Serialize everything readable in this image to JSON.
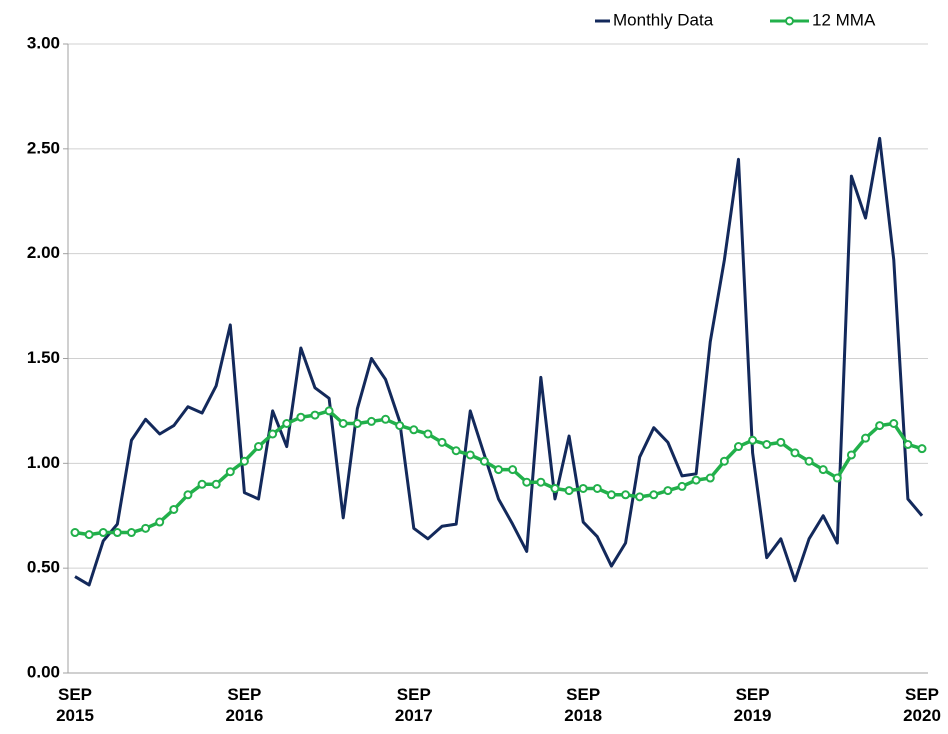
{
  "chart_data": {
    "type": "line",
    "categories": [
      "SEP 2015",
      null,
      null,
      null,
      null,
      null,
      null,
      null,
      null,
      null,
      null,
      null,
      "SEP 2016",
      null,
      null,
      null,
      null,
      null,
      null,
      null,
      null,
      null,
      null,
      null,
      "SEP 2017",
      null,
      null,
      null,
      null,
      null,
      null,
      null,
      null,
      null,
      null,
      null,
      "SEP 2018",
      null,
      null,
      null,
      null,
      null,
      null,
      null,
      null,
      null,
      null,
      null,
      "SEP 2019",
      null,
      null,
      null,
      null,
      null,
      null,
      null,
      null,
      null,
      null,
      null,
      "SEP 2020"
    ],
    "series": [
      {
        "name": "Monthly Data",
        "color": "#13295b",
        "values": [
          0.46,
          0.42,
          0.63,
          0.71,
          1.11,
          1.21,
          1.14,
          1.18,
          1.27,
          1.24,
          1.37,
          1.66,
          0.86,
          0.83,
          1.25,
          1.08,
          1.55,
          1.36,
          1.31,
          0.74,
          1.26,
          1.5,
          1.4,
          1.2,
          0.69,
          0.64,
          0.7,
          0.71,
          1.25,
          1.04,
          0.83,
          0.71,
          0.58,
          1.41,
          0.83,
          1.13,
          0.72,
          0.65,
          0.51,
          0.62,
          1.03,
          1.17,
          1.1,
          0.94,
          0.95,
          1.58,
          1.97,
          2.45,
          1.05,
          0.55,
          0.64,
          0.44,
          0.64,
          0.75,
          0.62,
          2.37,
          2.17,
          2.55,
          1.97,
          0.83,
          0.75
        ]
      },
      {
        "name": "12 MMA",
        "color": "#22b04b",
        "marker": "circle",
        "values": [
          0.67,
          0.66,
          0.67,
          0.67,
          0.67,
          0.69,
          0.72,
          0.78,
          0.85,
          0.9,
          0.9,
          0.96,
          1.01,
          1.08,
          1.14,
          1.19,
          1.22,
          1.23,
          1.25,
          1.19,
          1.19,
          1.2,
          1.21,
          1.18,
          1.16,
          1.14,
          1.1,
          1.06,
          1.04,
          1.01,
          0.97,
          0.97,
          0.91,
          0.91,
          0.88,
          0.87,
          0.88,
          0.88,
          0.85,
          0.85,
          0.84,
          0.85,
          0.87,
          0.89,
          0.92,
          0.93,
          1.01,
          1.08,
          1.11,
          1.09,
          1.1,
          1.05,
          1.01,
          0.97,
          0.93,
          1.04,
          1.12,
          1.18,
          1.19,
          1.09,
          1.07
        ]
      }
    ],
    "ylim": [
      0,
      3
    ],
    "yticks": [
      {
        "value": 0,
        "label": "0.00"
      },
      {
        "value": 0.5,
        "label": "0.50"
      },
      {
        "value": 1,
        "label": "1.00"
      },
      {
        "value": 1.5,
        "label": "1.50"
      },
      {
        "value": 2,
        "label": "2.00"
      },
      {
        "value": 2.5,
        "label": "2.50"
      },
      {
        "value": 3,
        "label": "3.00"
      }
    ],
    "grid": true,
    "legend": "top-right"
  }
}
